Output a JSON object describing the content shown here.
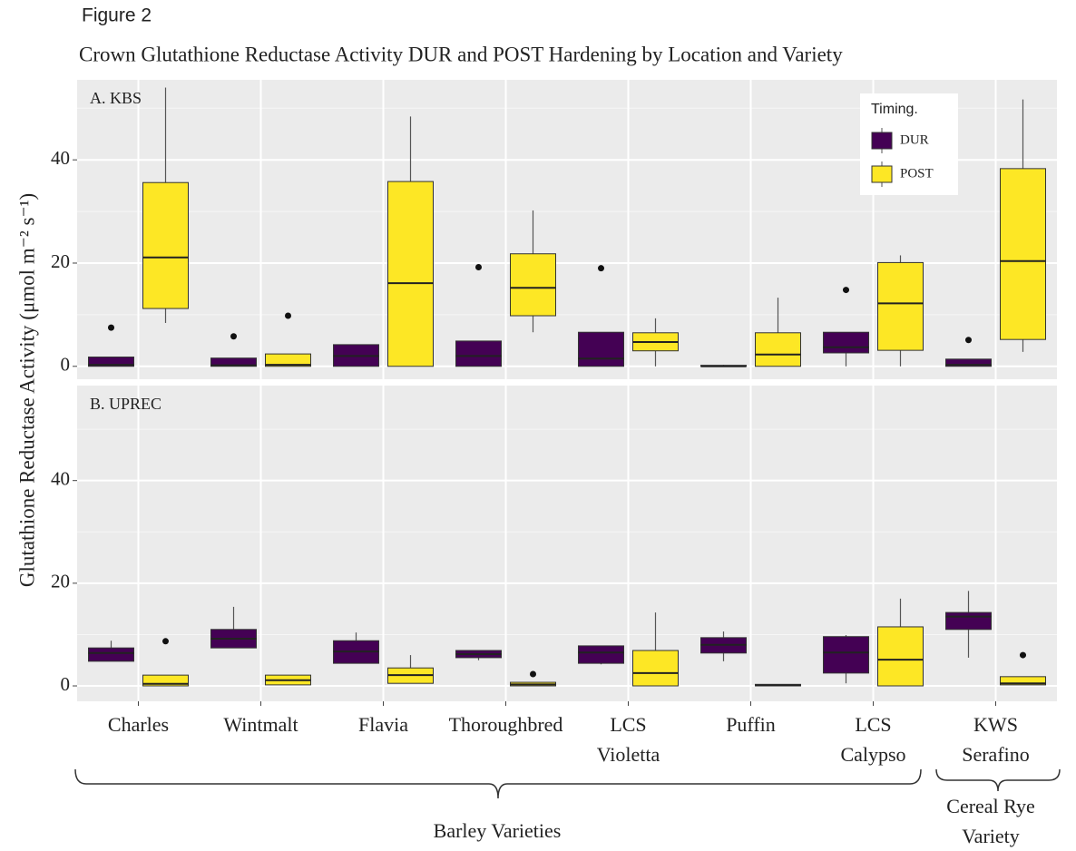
{
  "figure_label": "Figure 2",
  "title": "Crown Glutathione Reductase Activity DUR and POST Hardening by Location and Variety",
  "y_label": "Glutathione Reductase Activity (μmol m⁻² s⁻¹)",
  "legend_title": "Timing.",
  "groups": [
    "Barley Varieties",
    "Cereal Rye\nVariety"
  ],
  "chart_data": [
    {
      "type": "box",
      "panel_label": "A. KBS",
      "categories": [
        "Charles",
        "Wintmalt",
        "Flavia",
        "Thoroughbred",
        "LCS\nVioletta",
        "Puffin",
        "LCS\nCalypso",
        "KWS\nSerafino"
      ],
      "ylim": [
        -2.5,
        55.5
      ],
      "yticks": [
        0,
        20,
        40
      ],
      "minor_yticks": [
        10,
        30,
        50
      ],
      "grid": true,
      "series": [
        {
          "name": "DUR",
          "color": "#440154",
          "values": [
            {
              "min": 0,
              "q1": 0,
              "median": 0.3,
              "q3": 1.8,
              "max": 1.8,
              "outliers": [
                7.5
              ]
            },
            {
              "min": 0,
              "q1": 0,
              "median": 0.2,
              "q3": 1.6,
              "max": 1.6,
              "outliers": [
                5.8
              ]
            },
            {
              "min": 0,
              "q1": 0,
              "median": 2.0,
              "q3": 4.2,
              "max": 4.2,
              "outliers": []
            },
            {
              "min": 0,
              "q1": 0,
              "median": 2.0,
              "q3": 4.9,
              "max": 4.9,
              "outliers": [
                19.2
              ]
            },
            {
              "min": 0,
              "q1": 0,
              "median": 1.5,
              "q3": 6.6,
              "max": 6.6,
              "outliers": [
                19.0
              ]
            },
            {
              "min": 0,
              "q1": 0,
              "median": 0,
              "q3": 0.2,
              "max": 0.3,
              "outliers": []
            },
            {
              "min": 0,
              "q1": 2.6,
              "median": 3.7,
              "q3": 6.6,
              "max": 6.6,
              "outliers": [
                14.8
              ]
            },
            {
              "min": 0,
              "q1": 0,
              "median": 0.3,
              "q3": 1.4,
              "max": 1.4,
              "outliers": [
                5.1
              ]
            }
          ]
        },
        {
          "name": "POST",
          "color": "#fde725",
          "values": [
            {
              "min": 8.4,
              "q1": 11.2,
              "median": 21.1,
              "q3": 35.6,
              "max": 54,
              "outliers": []
            },
            {
              "min": 0,
              "q1": 0,
              "median": 0.3,
              "q3": 2.4,
              "max": 2.4,
              "outliers": [
                9.8
              ]
            },
            {
              "min": 0,
              "q1": 0,
              "median": 16.1,
              "q3": 35.8,
              "max": 48.4,
              "outliers": []
            },
            {
              "min": 6.6,
              "q1": 9.8,
              "median": 15.2,
              "q3": 21.8,
              "max": 30.2,
              "outliers": []
            },
            {
              "min": 0,
              "q1": 3.0,
              "median": 4.7,
              "q3": 6.5,
              "max": 9.3,
              "outliers": []
            },
            {
              "min": 0,
              "q1": 0,
              "median": 2.3,
              "q3": 6.5,
              "max": 13.3,
              "outliers": []
            },
            {
              "min": 0,
              "q1": 3.1,
              "median": 12.2,
              "q3": 20.1,
              "max": 21.5,
              "outliers": []
            },
            {
              "min": 2.8,
              "q1": 5.2,
              "median": 20.4,
              "q3": 38.3,
              "max": 51.7,
              "outliers": []
            }
          ]
        }
      ]
    },
    {
      "type": "box",
      "panel_label": "B. UPREC",
      "ylim": [
        -3,
        58.5
      ],
      "yticks": [
        0,
        20,
        40
      ],
      "minor_yticks": [
        10,
        30,
        50
      ],
      "grid": true,
      "series": [
        {
          "color": "#440154",
          "values": [
            {
              "min": 4.8,
              "q1": 4.8,
              "median": 6.4,
              "q3": 7.4,
              "max": 8.8,
              "outliers": []
            },
            {
              "min": 7.4,
              "q1": 7.4,
              "median": 9.2,
              "q3": 11.0,
              "max": 15.4,
              "outliers": []
            },
            {
              "min": 4.4,
              "q1": 4.4,
              "median": 6.7,
              "q3": 8.8,
              "max": 10.4,
              "outliers": []
            },
            {
              "min": 5.0,
              "q1": 5.5,
              "median": 6.2,
              "q3": 6.9,
              "max": 6.9,
              "outliers": []
            },
            {
              "min": 4.2,
              "q1": 4.4,
              "median": 6.5,
              "q3": 7.8,
              "max": 7.8,
              "outliers": []
            },
            {
              "min": 4.8,
              "q1": 6.4,
              "median": 8.0,
              "q3": 9.4,
              "max": 10.6,
              "outliers": []
            },
            {
              "min": 0.5,
              "q1": 2.5,
              "median": 6.5,
              "q3": 9.6,
              "max": 9.9,
              "outliers": []
            },
            {
              "min": 5.5,
              "q1": 11.0,
              "median": 13.5,
              "q3": 14.3,
              "max": 18.5,
              "outliers": []
            }
          ]
        },
        {
          "color": "#fde725",
          "values": [
            {
              "min": 0,
              "q1": 0,
              "median": 0.4,
              "q3": 2.1,
              "max": 2.1,
              "outliers": [
                8.7
              ]
            },
            {
              "min": 0.2,
              "q1": 0.2,
              "median": 1.1,
              "q3": 2.1,
              "max": 2.1,
              "outliers": []
            },
            {
              "min": 0.5,
              "q1": 0.5,
              "median": 2.1,
              "q3": 3.5,
              "max": 6.0,
              "outliers": []
            },
            {
              "min": 0,
              "q1": 0,
              "median": 0.3,
              "q3": 0.7,
              "max": 0.7,
              "outliers": [
                2.3
              ]
            },
            {
              "min": 0,
              "q1": 0,
              "median": 2.5,
              "q3": 6.9,
              "max": 14.3,
              "outliers": []
            },
            {
              "min": 0,
              "q1": 0,
              "median": 0.1,
              "q3": 0.3,
              "max": 0.3,
              "outliers": []
            },
            {
              "min": 0,
              "q1": 0,
              "median": 5.1,
              "q3": 11.5,
              "max": 17.0,
              "outliers": []
            },
            {
              "min": 0.2,
              "q1": 0.2,
              "median": 0.5,
              "q3": 1.8,
              "max": 1.8,
              "outliers": [
                6.0
              ]
            }
          ]
        }
      ]
    }
  ]
}
